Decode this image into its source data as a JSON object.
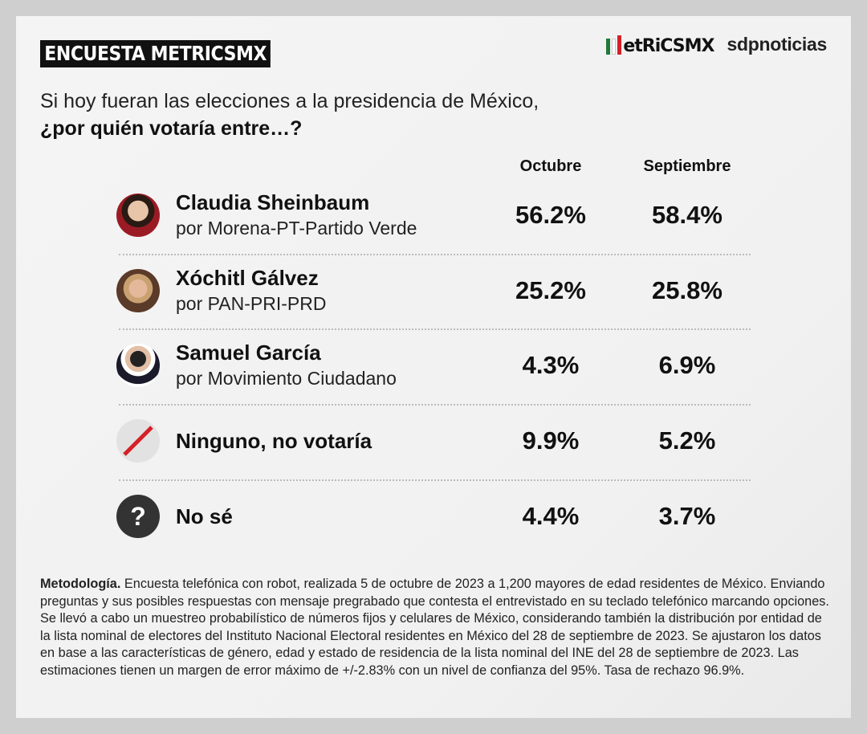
{
  "header": {
    "title": "ENCUESTA METRICSMX",
    "logo_metrics": "METRICSMX",
    "logo_sdp": "sdpnoticias"
  },
  "question": {
    "line1": "Si hoy fueran las elecciones a la presidencia de México,",
    "line2": "¿por quién votaría entre…?"
  },
  "columns": [
    "Octubre",
    "Septiembre"
  ],
  "rows": [
    {
      "name": "Claudia Sheinbaum",
      "party": "por Morena-PT-Partido Verde",
      "octubre": "56.2%",
      "septiembre": "58.4%",
      "icon": "candidate-photo"
    },
    {
      "name": "Xóchitl Gálvez",
      "party": "por PAN-PRI-PRD",
      "octubre": "25.2%",
      "septiembre": "25.8%",
      "icon": "candidate-photo"
    },
    {
      "name": "Samuel García",
      "party": "por Movimiento Ciudadano",
      "octubre": "4.3%",
      "septiembre": "6.9%",
      "icon": "candidate-photo"
    },
    {
      "name": "Ninguno, no votaría",
      "octubre": "9.9%",
      "septiembre": "5.2%",
      "icon": "slash-icon"
    },
    {
      "name": "No sé",
      "octubre": "4.4%",
      "septiembre": "3.7%",
      "icon": "question-icon"
    }
  ],
  "methodology": {
    "label": "Metodología.",
    "text": " Encuesta telefónica con robot, realizada 5 de octubre de 2023 a 1,200 mayores de edad residentes de México. Enviando preguntas y sus posibles respuestas con mensaje pregrabado que contesta el entrevistado en su teclado telefónico marcando opciones. Se llevó a cabo un muestreo probabilístico de números fijos y celulares de México, considerando también la distribución por entidad de la lista nominal de electores del Instituto Nacional Electoral residentes en México del 28 de septiembre de 2023. Se ajustaron los datos en base a las características de género, edad y estado de residencia de la lista nominal del INE del 28 de septiembre de 2023. Las estimaciones tienen un margen de error máximo de +/-2.83% con un nivel de confianza del 95%. Tasa de rechazo 96.9%."
  },
  "chart_data": {
    "type": "table",
    "categories": [
      "Claudia Sheinbaum",
      "Xóchitl Gálvez",
      "Samuel García",
      "Ninguno, no votaría",
      "No sé"
    ],
    "series": [
      {
        "name": "Octubre",
        "values": [
          56.2,
          25.2,
          4.3,
          9.9,
          4.4
        ]
      },
      {
        "name": "Septiembre",
        "values": [
          58.4,
          25.8,
          6.9,
          5.2,
          3.7
        ]
      }
    ]
  },
  "colors": {
    "accent_red": "#d62027",
    "green": "#1f7a3a",
    "dark": "#111111"
  }
}
